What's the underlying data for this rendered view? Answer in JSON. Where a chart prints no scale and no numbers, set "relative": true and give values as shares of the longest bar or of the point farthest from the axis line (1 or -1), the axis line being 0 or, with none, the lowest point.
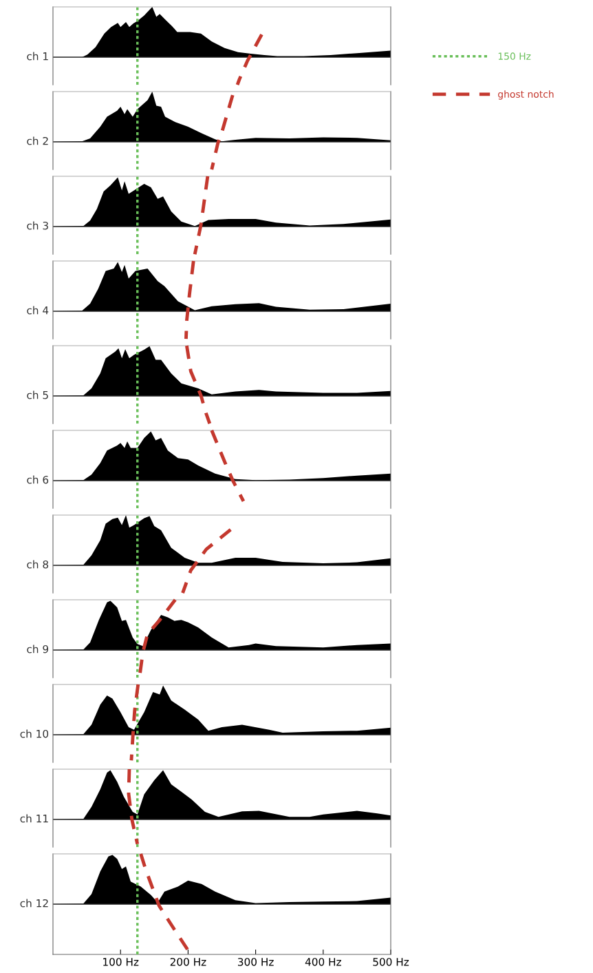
{
  "chart_data": [
    {
      "type": "area",
      "relative": true,
      "ylabel": "ch 1",
      "xlim": [
        0,
        500
      ],
      "tick_labels": false,
      "legend": "right",
      "ref_lines": [
        {
          "axis": "x",
          "value": 125,
          "label": "150 Hz",
          "color": "#6abf5a",
          "line_style": "dotted"
        }
      ],
      "series": [
        {
          "color": "#000000",
          "x": [
            0,
            43,
            51,
            63,
            76,
            86,
            96,
            100,
            108,
            113,
            119,
            125,
            135,
            147,
            153,
            158,
            166,
            176,
            184,
            196,
            203,
            219,
            235,
            254,
            274,
            293,
            313,
            332,
            371,
            411,
            450,
            500
          ],
          "values": [
            0,
            0,
            0.05,
            0.2,
            0.47,
            0.6,
            0.68,
            0.6,
            0.7,
            0.6,
            0.67,
            0.72,
            0.83,
            1.0,
            0.8,
            0.86,
            0.75,
            0.62,
            0.5,
            0.5,
            0.5,
            0.47,
            0.31,
            0.18,
            0.1,
            0.07,
            0.04,
            0.02,
            0.02,
            0.04,
            0.08,
            0.13
          ]
        },
        {
          "name": "ghost notch",
          "type": "line",
          "line_style": "dashed",
          "color": "#c4382e",
          "x": [
            309,
            288,
            276,
            273
          ],
          "values": [
            0.45,
            -0.07,
            -0.44,
            -0.55
          ]
        }
      ]
    },
    {
      "type": "area",
      "relative": true,
      "ylabel": "ch 2",
      "xlim": [
        0,
        500
      ],
      "tick_labels": false,
      "ref_lines": [
        {
          "axis": "x",
          "value": 125,
          "color": "#6abf5a",
          "line_style": "dotted"
        }
      ],
      "series": [
        {
          "color": "#000000",
          "x": [
            0,
            43,
            55,
            70,
            80,
            95,
            100,
            106,
            110,
            118,
            125,
            140,
            147,
            153,
            160,
            166,
            180,
            200,
            220,
            240,
            250,
            270,
            300,
            350,
            400,
            450,
            500
          ],
          "values": [
            0,
            0.01,
            0.07,
            0.3,
            0.5,
            0.62,
            0.7,
            0.55,
            0.65,
            0.5,
            0.65,
            0.83,
            1.0,
            0.72,
            0.7,
            0.5,
            0.4,
            0.3,
            0.17,
            0.05,
            0.01,
            0.04,
            0.08,
            0.07,
            0.09,
            0.08,
            0.03
          ]
        },
        {
          "type": "line",
          "line_style": "dashed",
          "color": "#c4382e",
          "x": [
            266,
            250,
            244,
            235
          ],
          "values": [
            0.93,
            0.19,
            -0.03,
            -0.55
          ]
        }
      ]
    },
    {
      "type": "area",
      "relative": true,
      "ylabel": "ch 3",
      "xlim": [
        0,
        500
      ],
      "tick_labels": false,
      "ref_lines": [
        {
          "axis": "x",
          "value": 125,
          "color": "#6abf5a",
          "line_style": "dotted"
        }
      ],
      "series": [
        {
          "color": "#000000",
          "x": [
            0,
            45,
            55,
            65,
            75,
            85,
            96,
            102,
            106,
            112,
            120,
            135,
            145,
            155,
            163,
            175,
            190,
            210,
            230,
            260,
            300,
            330,
            380,
            430,
            500
          ],
          "values": [
            0,
            0.01,
            0.12,
            0.35,
            0.7,
            0.82,
            0.98,
            0.72,
            0.9,
            0.65,
            0.72,
            0.85,
            0.78,
            0.55,
            0.6,
            0.3,
            0.1,
            0.01,
            0.13,
            0.15,
            0.15,
            0.08,
            0.02,
            0.05,
            0.14
          ]
        },
        {
          "type": "line",
          "line_style": "dashed",
          "color": "#c4382e",
          "x": [
            229,
            219,
            210
          ],
          "values": [
            1.0,
            0.03,
            -0.55
          ]
        }
      ]
    },
    {
      "type": "area",
      "relative": true,
      "ylabel": "ch 4",
      "xlim": [
        0,
        500
      ],
      "tick_labels": false,
      "ref_lines": [
        {
          "axis": "x",
          "value": 125,
          "color": "#6abf5a",
          "line_style": "dotted"
        }
      ],
      "series": [
        {
          "color": "#000000",
          "x": [
            0,
            43,
            55,
            67,
            78,
            90,
            96,
            102,
            106,
            112,
            122,
            140,
            155,
            165,
            185,
            210,
            235,
            270,
            305,
            330,
            380,
            430,
            500
          ],
          "values": [
            0,
            0.01,
            0.15,
            0.45,
            0.8,
            0.85,
            0.98,
            0.78,
            0.92,
            0.65,
            0.8,
            0.85,
            0.6,
            0.5,
            0.2,
            0.02,
            0.1,
            0.14,
            0.16,
            0.09,
            0.03,
            0.04,
            0.15
          ]
        },
        {
          "type": "line",
          "line_style": "dashed",
          "color": "#c4382e",
          "x": [
            208,
            202,
            198,
            197
          ],
          "values": [
            1.0,
            0.33,
            -0.19,
            -0.55
          ]
        }
      ]
    },
    {
      "type": "area",
      "relative": true,
      "ylabel": "ch 5",
      "xlim": [
        0,
        500
      ],
      "tick_labels": false,
      "ref_lines": [
        {
          "axis": "x",
          "value": 125,
          "color": "#6abf5a",
          "line_style": "dotted"
        }
      ],
      "series": [
        {
          "color": "#000000",
          "x": [
            0,
            45,
            57,
            70,
            78,
            92,
            97,
            102,
            107,
            113,
            120,
            135,
            143,
            152,
            160,
            175,
            190,
            215,
            235,
            270,
            305,
            330,
            400,
            450,
            500
          ],
          "values": [
            0,
            0.01,
            0.15,
            0.45,
            0.75,
            0.88,
            0.95,
            0.75,
            0.93,
            0.75,
            0.82,
            0.92,
            0.99,
            0.72,
            0.72,
            0.45,
            0.25,
            0.15,
            0.03,
            0.09,
            0.12,
            0.09,
            0.06,
            0.06,
            0.1
          ]
        },
        {
          "type": "line",
          "line_style": "dashed",
          "color": "#c4382e",
          "x": [
            198,
            204,
            219,
            227,
            232
          ],
          "values": [
            1.0,
            0.49,
            0.01,
            -0.36,
            -0.55
          ]
        }
      ]
    },
    {
      "type": "area",
      "relative": true,
      "ylabel": "ch 6",
      "xlim": [
        0,
        500
      ],
      "tick_labels": false,
      "ref_lines": [
        {
          "axis": "x",
          "value": 125,
          "color": "#6abf5a",
          "line_style": "dotted"
        }
      ],
      "series": [
        {
          "color": "#000000",
          "x": [
            0,
            45,
            57,
            70,
            80,
            95,
            100,
            106,
            110,
            115,
            125,
            135,
            145,
            152,
            160,
            170,
            185,
            200,
            215,
            240,
            270,
            300,
            350,
            400,
            450,
            500
          ],
          "values": [
            0,
            0.01,
            0.12,
            0.35,
            0.6,
            0.7,
            0.75,
            0.65,
            0.78,
            0.65,
            0.65,
            0.85,
            0.98,
            0.8,
            0.85,
            0.6,
            0.45,
            0.42,
            0.3,
            0.14,
            0.03,
            0.01,
            0.02,
            0.05,
            0.1,
            0.14
          ]
        },
        {
          "type": "line",
          "line_style": "dashed",
          "color": "#c4382e",
          "x": [
            235,
            254,
            266,
            282
          ],
          "values": [
            1.0,
            0.38,
            0.01,
            -0.41
          ]
        }
      ]
    },
    {
      "type": "area",
      "relative": true,
      "ylabel": "ch 8",
      "xlim": [
        0,
        500
      ],
      "tick_labels": false,
      "ref_lines": [
        {
          "axis": "x",
          "value": 125,
          "color": "#6abf5a",
          "line_style": "dotted"
        }
      ],
      "series": [
        {
          "color": "#000000",
          "x": [
            0,
            45,
            57,
            70,
            78,
            88,
            96,
            102,
            108,
            113,
            120,
            135,
            143,
            150,
            160,
            175,
            195,
            215,
            235,
            270,
            300,
            340,
            400,
            450,
            500
          ],
          "values": [
            0,
            0.01,
            0.2,
            0.5,
            0.83,
            0.92,
            0.95,
            0.8,
            1.0,
            0.75,
            0.8,
            0.94,
            0.98,
            0.78,
            0.7,
            0.35,
            0.15,
            0.05,
            0.05,
            0.15,
            0.15,
            0.07,
            0.04,
            0.06,
            0.14
          ]
        },
        {
          "type": "line",
          "line_style": "dashed",
          "color": "#c4382e",
          "x": [
            263,
            227,
            204,
            192
          ],
          "values": [
            0.71,
            0.32,
            -0.1,
            -0.55
          ]
        }
      ]
    },
    {
      "type": "area",
      "relative": true,
      "ylabel": "ch 9",
      "xlim": [
        0,
        500
      ],
      "tick_labels": false,
      "ref_lines": [
        {
          "axis": "x",
          "value": 125,
          "color": "#6abf5a",
          "line_style": "dotted"
        }
      ],
      "series": [
        {
          "color": "#000000",
          "x": [
            0,
            45,
            55,
            68,
            80,
            85,
            95,
            102,
            108,
            118,
            125,
            133,
            145,
            160,
            170,
            180,
            190,
            200,
            215,
            235,
            260,
            290,
            300,
            330,
            400,
            450,
            500
          ],
          "values": [
            0,
            0.01,
            0.15,
            0.6,
            0.95,
            0.98,
            0.85,
            0.58,
            0.6,
            0.25,
            0.12,
            0.08,
            0.4,
            0.7,
            0.65,
            0.58,
            0.6,
            0.55,
            0.45,
            0.25,
            0.05,
            0.1,
            0.13,
            0.08,
            0.05,
            0.1,
            0.13
          ]
        },
        {
          "type": "line",
          "line_style": "dashed",
          "color": "#c4382e",
          "x": [
            181,
            157,
            140,
            133,
            128
          ],
          "values": [
            1.0,
            0.58,
            0.32,
            -0.05,
            -0.55
          ]
        }
      ]
    },
    {
      "type": "area",
      "relative": true,
      "ylabel": "ch 10",
      "xlim": [
        0,
        500
      ],
      "tick_labels": false,
      "ref_lines": [
        {
          "axis": "x",
          "value": 125,
          "color": "#6abf5a",
          "line_style": "dotted"
        }
      ],
      "series": [
        {
          "color": "#000000",
          "x": [
            0,
            45,
            57,
            70,
            80,
            88,
            100,
            112,
            120,
            135,
            148,
            158,
            163,
            175,
            195,
            215,
            230,
            250,
            280,
            320,
            340,
            400,
            450,
            500
          ],
          "values": [
            0,
            0.01,
            0.2,
            0.6,
            0.78,
            0.72,
            0.45,
            0.15,
            0.1,
            0.45,
            0.85,
            0.8,
            0.98,
            0.68,
            0.5,
            0.3,
            0.08,
            0.15,
            0.2,
            0.1,
            0.04,
            0.07,
            0.08,
            0.14
          ]
        },
        {
          "type": "line",
          "line_style": "dashed",
          "color": "#c4382e",
          "x": [
            126,
            121,
            119,
            116
          ],
          "values": [
            1.0,
            0.49,
            0.12,
            -0.51
          ]
        }
      ]
    },
    {
      "type": "area",
      "relative": true,
      "ylabel": "ch 11",
      "xlim": [
        0,
        500
      ],
      "tick_labels": false,
      "ref_lines": [
        {
          "axis": "x",
          "value": 125,
          "color": "#6abf5a",
          "line_style": "dotted"
        }
      ],
      "series": [
        {
          "color": "#000000",
          "x": [
            0,
            45,
            57,
            70,
            80,
            85,
            95,
            105,
            118,
            125,
            135,
            150,
            163,
            175,
            190,
            205,
            225,
            245,
            280,
            305,
            350,
            380,
            400,
            450,
            480,
            500
          ],
          "values": [
            0,
            0.01,
            0.25,
            0.6,
            0.93,
            0.98,
            0.75,
            0.45,
            0.15,
            0.1,
            0.5,
            0.78,
            0.98,
            0.7,
            0.55,
            0.4,
            0.15,
            0.05,
            0.16,
            0.17,
            0.05,
            0.05,
            0.1,
            0.17,
            0.12,
            0.08
          ]
        },
        {
          "type": "line",
          "line_style": "dashed",
          "color": "#c4382e",
          "x": [
            113,
            112,
            117,
            125
          ],
          "values": [
            1.0,
            0.51,
            -0.01,
            -0.49
          ]
        }
      ]
    },
    {
      "type": "area",
      "relative": true,
      "ylabel": "ch 12",
      "xlim": [
        0,
        500
      ],
      "tick_labels": "x",
      "xticks": [
        {
          "value": 100,
          "label": "100 Hz"
        },
        {
          "value": 200,
          "label": "200 Hz"
        },
        {
          "value": 300,
          "label": "300 Hz"
        },
        {
          "value": 400,
          "label": "400 Hz"
        },
        {
          "value": 500,
          "label": "500 Hz"
        }
      ],
      "ref_lines": [
        {
          "axis": "x",
          "value": 125,
          "color": "#6abf5a",
          "line_style": "dotted"
        }
      ],
      "series": [
        {
          "color": "#000000",
          "x": [
            0,
            45,
            57,
            70,
            82,
            88,
            95,
            102,
            108,
            115,
            130,
            145,
            155,
            165,
            185,
            200,
            220,
            240,
            270,
            300,
            350,
            400,
            450,
            500
          ],
          "values": [
            0,
            0.01,
            0.2,
            0.65,
            0.95,
            0.98,
            0.9,
            0.7,
            0.75,
            0.45,
            0.35,
            0.18,
            0.03,
            0.25,
            0.35,
            0.47,
            0.4,
            0.25,
            0.08,
            0.02,
            0.04,
            0.05,
            0.06,
            0.13
          ]
        },
        {
          "type": "line",
          "line_style": "dashed",
          "color": "#c4382e",
          "x": [
            130,
            137,
            157,
            180,
            204
          ],
          "values": [
            1.0,
            0.7,
            -0.03,
            -0.51,
            -1.0
          ]
        }
      ]
    }
  ]
}
